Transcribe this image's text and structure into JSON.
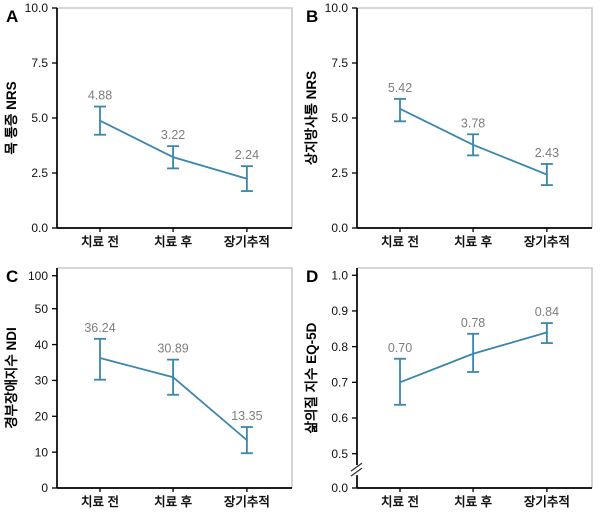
{
  "colors": {
    "line": "#3b86ac",
    "error_bar": "#3b86ac",
    "data_label": "#7d7d7d",
    "axis": "#000000",
    "tick_text": "#111111",
    "frame": "#c9c9c9",
    "background": "#ffffff"
  },
  "chart_data": [
    {
      "panel": "A",
      "type": "line",
      "ylabel": "목 통증 NRS",
      "categories": [
        "치료 전",
        "치료 후",
        "장기추적"
      ],
      "values": [
        4.88,
        3.22,
        2.24
      ],
      "error_low": [
        4.24,
        2.71,
        1.68
      ],
      "error_high": [
        5.52,
        3.72,
        2.81
      ],
      "point_labels": [
        "4.88",
        "3.22",
        "2.24"
      ],
      "ylim": [
        0,
        10
      ],
      "yticks": [
        {
          "label": "0.0",
          "value": 0
        },
        {
          "label": "2.5",
          "value": 2.5
        },
        {
          "label": "5.0",
          "value": 5
        },
        {
          "label": "7.5",
          "value": 7.5
        },
        {
          "label": "10.0",
          "value": 10
        }
      ],
      "scale_segments": [
        {
          "v0": 0,
          "v1": 10,
          "f0": 0,
          "f1": 1
        }
      ],
      "axis_break": false,
      "grid": false,
      "legend": false
    },
    {
      "panel": "B",
      "type": "line",
      "ylabel": "상지방사통 NRS",
      "categories": [
        "치료 전",
        "치료 후",
        "장기추적"
      ],
      "values": [
        5.42,
        3.78,
        2.43
      ],
      "error_low": [
        4.85,
        3.3,
        1.95
      ],
      "error_high": [
        5.87,
        4.26,
        2.91
      ],
      "point_labels": [
        "5.42",
        "3.78",
        "2.43"
      ],
      "ylim": [
        0,
        10
      ],
      "yticks": [
        {
          "label": "0.0",
          "value": 0
        },
        {
          "label": "2.5",
          "value": 2.5
        },
        {
          "label": "5.0",
          "value": 5
        },
        {
          "label": "7.5",
          "value": 7.5
        },
        {
          "label": "10.0",
          "value": 10
        }
      ],
      "scale_segments": [
        {
          "v0": 0,
          "v1": 10,
          "f0": 0,
          "f1": 1
        }
      ],
      "axis_break": false,
      "grid": false,
      "legend": false
    },
    {
      "panel": "C",
      "type": "line",
      "ylabel": "경부장애지수 NDI",
      "categories": [
        "치료 전",
        "치료 후",
        "장기추적"
      ],
      "values": [
        36.24,
        30.89,
        13.35
      ],
      "error_low": [
        30.2,
        26.0,
        9.7
      ],
      "error_high": [
        41.6,
        35.8,
        17.0
      ],
      "point_labels": [
        "36.24",
        "30.89",
        "13.35"
      ],
      "ylim": [
        0,
        100
      ],
      "yticks": [
        {
          "label": "0",
          "value": 0
        },
        {
          "label": "10",
          "value": 10
        },
        {
          "label": "20",
          "value": 20
        },
        {
          "label": "30",
          "value": 30
        },
        {
          "label": "40",
          "value": 40
        },
        {
          "label": "50",
          "value": 50
        },
        {
          "label": "100",
          "value": 100
        }
      ],
      "scale_segments": [
        {
          "v0": 0,
          "v1": 50,
          "f0": 0,
          "f1": 0.815
        },
        {
          "v0": 50,
          "v1": 100,
          "f0": 0.815,
          "f1": 0.965
        }
      ],
      "axis_break": false,
      "grid": false,
      "legend": false
    },
    {
      "panel": "D",
      "type": "line",
      "ylabel": "삶의질 지수 EQ-5D",
      "categories": [
        "치료 전",
        "치료 후",
        "장기추적"
      ],
      "values": [
        0.7,
        0.78,
        0.84
      ],
      "error_low": [
        0.637,
        0.729,
        0.81
      ],
      "error_high": [
        0.766,
        0.836,
        0.866
      ],
      "point_labels": [
        "0.70",
        "0.78",
        "0.84"
      ],
      "ylim": [
        0,
        1.0
      ],
      "yticks": [
        {
          "label": "0.0",
          "value": 0
        },
        {
          "label": "0.5",
          "value": 0.5
        },
        {
          "label": "0.6",
          "value": 0.6
        },
        {
          "label": "0.7",
          "value": 0.7
        },
        {
          "label": "0.8",
          "value": 0.8
        },
        {
          "label": "0.9",
          "value": 0.9
        },
        {
          "label": "1.0",
          "value": 1.0
        }
      ],
      "scale_segments": [
        {
          "v0": 0,
          "v1": 0.5,
          "f0": 0,
          "f1": 0.156
        },
        {
          "v0": 0.5,
          "v1": 1.0,
          "f0": 0.156,
          "f1": 0.967
        }
      ],
      "axis_break": true,
      "axis_break_frac": 0.095,
      "grid": false,
      "legend": false
    }
  ]
}
